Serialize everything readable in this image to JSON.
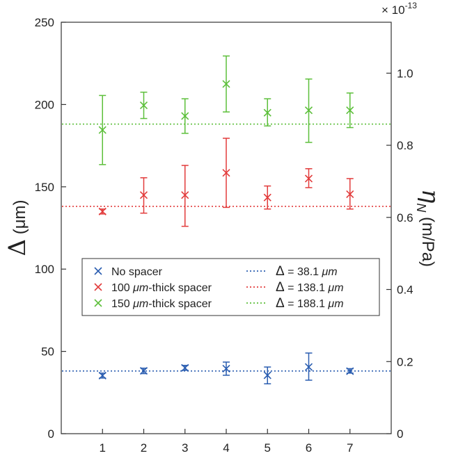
{
  "chart_data": {
    "type": "scatter",
    "x_ticks": [
      "1",
      "2",
      "3",
      "4",
      "5",
      "6",
      "7"
    ],
    "xlim": [
      0,
      8
    ],
    "ylim": [
      0,
      250
    ],
    "y_ticks": [
      "0",
      "50",
      "100",
      "150",
      "200",
      "250"
    ],
    "ylabel": "Δ (μm)",
    "ylabel_sym": "Δ",
    "ylabel_unit": "(μm)",
    "y2label_sym": "η",
    "y2label_sub": "N",
    "y2label_unit": "(m/Pa)",
    "y2lim": [
      0,
      1.1413
    ],
    "y2_ticks": [
      {
        "value": 0,
        "label": "0"
      },
      {
        "value": 0.2,
        "label": "0.2"
      },
      {
        "value": 0.4,
        "label": "0.4"
      },
      {
        "value": 0.6,
        "label": "0.6"
      },
      {
        "value": 0.8,
        "label": "0.8"
      },
      {
        "value": 1.0,
        "label": "1.0"
      }
    ],
    "y2_multiplier": "× 10",
    "y2_multiplier_exp": "-13",
    "grid": false,
    "legend_position": "center-left",
    "series": [
      {
        "name": "No spacer",
        "color": "#2a5db0",
        "x": [
          1,
          2,
          3,
          4,
          5,
          6,
          7
        ],
        "y": [
          35.3,
          38.2,
          40.0,
          39.5,
          35.5,
          40.5,
          38.0
        ],
        "err_low": [
          33.8,
          36.5,
          38.5,
          35.5,
          30.3,
          32.5,
          36.8
        ],
        "err_high": [
          36.8,
          39.8,
          41.5,
          43.5,
          40.5,
          49.0,
          39.5
        ]
      },
      {
        "name": "100 μm-thick spacer",
        "color": "#e23b3b",
        "x": [
          1,
          2,
          3,
          4,
          5,
          6,
          7
        ],
        "y": [
          135.0,
          145.0,
          145.0,
          158.5,
          143.5,
          155.0,
          145.5
        ],
        "err_low": [
          133.5,
          134.0,
          126.0,
          137.5,
          136.5,
          149.5,
          136.5
        ],
        "err_high": [
          136.5,
          155.5,
          163.0,
          179.5,
          150.5,
          161.0,
          155.0
        ]
      },
      {
        "name": "150 μm-thick spacer",
        "color": "#5cbf3a",
        "x": [
          1,
          2,
          3,
          4,
          5,
          6,
          7
        ],
        "y": [
          184.5,
          199.5,
          193.0,
          212.5,
          195.0,
          196.5,
          196.5
        ],
        "err_low": [
          163.5,
          191.5,
          182.5,
          195.5,
          187.0,
          177.0,
          186.0
        ],
        "err_high": [
          205.5,
          207.5,
          203.5,
          229.5,
          203.5,
          215.5,
          207.0
        ]
      }
    ],
    "reference_lines": [
      {
        "name": "Δ = 38.1 μm",
        "sym": "Δ",
        "label": "= 38.1",
        "unit": "μm",
        "value": 38.1,
        "color": "#2a5db0",
        "style": "dotted"
      },
      {
        "name": "Δ = 138.1 μm",
        "sym": "Δ",
        "label": "= 138.1",
        "unit": "μm",
        "value": 138.1,
        "color": "#e23b3b",
        "style": "dotted"
      },
      {
        "name": "Δ = 188.1 μm",
        "sym": "Δ",
        "label": "= 188.1",
        "unit": "μm",
        "value": 188.1,
        "color": "#5cbf3a",
        "style": "dotted"
      }
    ],
    "legend": {
      "marker_entries": [
        {
          "label": "No spacer",
          "color": "#2a5db0"
        },
        {
          "pre": "100 ",
          "unit": "μm",
          "post": "-thick spacer",
          "color": "#e23b3b"
        },
        {
          "pre": "150 ",
          "unit": "μm",
          "post": "-thick spacer",
          "color": "#5cbf3a"
        }
      ]
    }
  }
}
